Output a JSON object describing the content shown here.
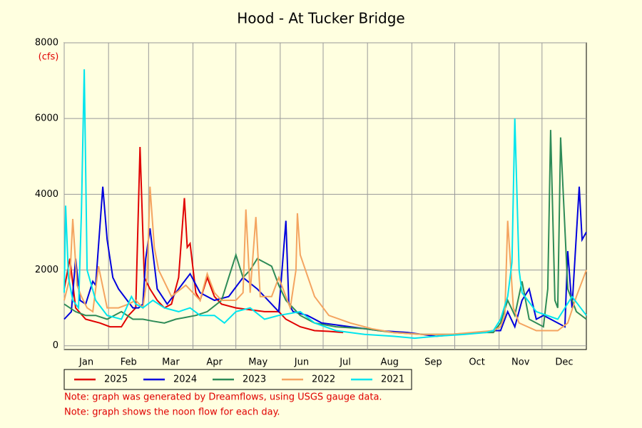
{
  "chart_data": {
    "type": "line",
    "title": "Hood - At Tucker Bridge",
    "y_label": "(cfs)",
    "xlim": [
      0,
      365
    ],
    "ylim": [
      -100,
      8000
    ],
    "xticks": [
      {
        "value": 0,
        "label": "Jan"
      },
      {
        "value": 31,
        "label": "Feb"
      },
      {
        "value": 59,
        "label": "Mar"
      },
      {
        "value": 90,
        "label": "Apr"
      },
      {
        "value": 120,
        "label": "May"
      },
      {
        "value": 151,
        "label": "Jun"
      },
      {
        "value": 181,
        "label": "Jul"
      },
      {
        "value": 212,
        "label": "Aug"
      },
      {
        "value": 243,
        "label": "Sep"
      },
      {
        "value": 273,
        "label": "Oct"
      },
      {
        "value": 304,
        "label": "Nov"
      },
      {
        "value": 334,
        "label": "Dec"
      }
    ],
    "yticks": [
      0,
      2000,
      4000,
      6000,
      8000
    ],
    "grid": true,
    "series": [
      {
        "name": "2025",
        "color": "#e00000",
        "x": [
          0,
          4,
          8,
          15,
          25,
          32,
          40,
          45,
          50,
          53,
          56,
          60,
          65,
          70,
          75,
          80,
          84,
          86,
          88,
          92,
          95,
          100,
          105,
          110,
          120,
          130,
          140,
          150,
          155,
          165,
          175,
          185,
          195
        ],
        "values": [
          1500,
          2300,
          1000,
          700,
          600,
          500,
          500,
          800,
          1000,
          5250,
          1800,
          1500,
          1200,
          1000,
          1100,
          1800,
          3900,
          2600,
          2700,
          1400,
          1200,
          1800,
          1300,
          1100,
          1000,
          950,
          900,
          900,
          700,
          500,
          400,
          380,
          350
        ]
      },
      {
        "name": "2024",
        "color": "#0000dd",
        "x": [
          0,
          5,
          8,
          11,
          15,
          20,
          22,
          27,
          30,
          34,
          38,
          44,
          48,
          52,
          55,
          57,
          60,
          65,
          72,
          80,
          88,
          95,
          105,
          115,
          125,
          135,
          145,
          150,
          155,
          157,
          160,
          170,
          180,
          200,
          220,
          240,
          260,
          275,
          290,
          300,
          305,
          310,
          315,
          320,
          325,
          330,
          335,
          345,
          350,
          352,
          355,
          360,
          362,
          365
        ],
        "values": [
          700,
          900,
          2300,
          1200,
          1100,
          1700,
          1600,
          4200,
          2800,
          1800,
          1500,
          1200,
          1000,
          1000,
          1100,
          2300,
          3100,
          1500,
          1100,
          1500,
          1900,
          1400,
          1200,
          1300,
          1800,
          1500,
          1100,
          900,
          3300,
          1100,
          900,
          800,
          600,
          500,
          400,
          350,
          250,
          300,
          350,
          400,
          400,
          900,
          500,
          1200,
          1500,
          700,
          800,
          600,
          500,
          2500,
          1000,
          4200,
          2800,
          3000
        ]
      },
      {
        "name": "2023",
        "color": "#2e8b57",
        "x": [
          0,
          8,
          15,
          22,
          30,
          40,
          48,
          55,
          62,
          70,
          78,
          85,
          92,
          100,
          110,
          115,
          120,
          125,
          130,
          135,
          140,
          145,
          150,
          155,
          165,
          175,
          190,
          210,
          230,
          250,
          270,
          290,
          300,
          305,
          310,
          315,
          320,
          325,
          335,
          338,
          340,
          343,
          345,
          347,
          352,
          358,
          365
        ],
        "values": [
          1100,
          900,
          800,
          800,
          700,
          900,
          700,
          700,
          650,
          600,
          700,
          750,
          800,
          900,
          1200,
          1800,
          2400,
          1800,
          2000,
          2300,
          2200,
          2100,
          1600,
          1200,
          800,
          600,
          500,
          450,
          350,
          300,
          300,
          350,
          350,
          600,
          1200,
          800,
          1700,
          700,
          500,
          1500,
          5700,
          1200,
          1000,
          5500,
          1500,
          900,
          700
        ]
      },
      {
        "name": "2022",
        "color": "#f4a460",
        "x": [
          0,
          4,
          6,
          9,
          12,
          16,
          20,
          24,
          30,
          38,
          45,
          50,
          55,
          58,
          60,
          63,
          66,
          75,
          85,
          95,
          100,
          105,
          110,
          120,
          125,
          127,
          130,
          134,
          137,
          145,
          150,
          155,
          158,
          162,
          163,
          165,
          175,
          185,
          200,
          215,
          230,
          250,
          270,
          285,
          300,
          305,
          308,
          310,
          314,
          318,
          330,
          345,
          352,
          358,
          365
        ],
        "values": [
          1200,
          1800,
          3350,
          1600,
          1300,
          1000,
          900,
          2100,
          1000,
          1000,
          1100,
          1200,
          1000,
          1800,
          4200,
          2600,
          2000,
          1300,
          1600,
          1200,
          1900,
          1400,
          1200,
          1200,
          1400,
          3600,
          1400,
          3400,
          1300,
          1300,
          1800,
          1300,
          1000,
          2000,
          3500,
          2400,
          1300,
          800,
          600,
          450,
          350,
          300,
          300,
          350,
          400,
          500,
          800,
          3300,
          1000,
          600,
          400,
          400,
          600,
          1300,
          2000
        ]
      },
      {
        "name": "2021",
        "color": "#00e5ee",
        "x": [
          0,
          1,
          3,
          6,
          10,
          12,
          14,
          16,
          22,
          30,
          40,
          47,
          50,
          55,
          62,
          70,
          80,
          88,
          95,
          105,
          112,
          120,
          130,
          140,
          150,
          165,
          175,
          190,
          210,
          230,
          245,
          260,
          280,
          295,
          300,
          305,
          310,
          313,
          315,
          318,
          320,
          330,
          345,
          355,
          365
        ],
        "values": [
          1400,
          3700,
          1800,
          1200,
          1000,
          3500,
          7300,
          2000,
          1200,
          800,
          700,
          1300,
          1100,
          1000,
          1200,
          1000,
          900,
          1000,
          800,
          800,
          600,
          900,
          1000,
          700,
          800,
          900,
          600,
          400,
          300,
          250,
          200,
          250,
          300,
          350,
          400,
          700,
          1300,
          2200,
          6000,
          2000,
          1400,
          900,
          700,
          1300,
          800
        ]
      }
    ],
    "notes": [
      "Note: graph was generated by Dreamflows, using USGS gauge data.",
      "Note: graph shows the noon flow for each day."
    ]
  }
}
